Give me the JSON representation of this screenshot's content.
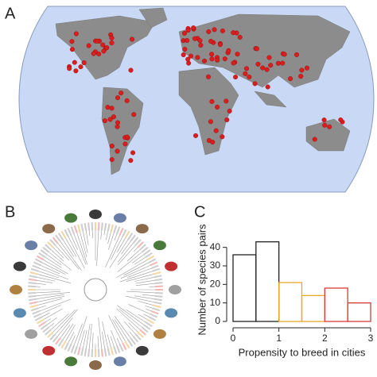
{
  "panels": {
    "a": "A",
    "b": "B",
    "c": "C"
  },
  "chart_data": {
    "type": "histogram",
    "bins": [
      0,
      0.5,
      1,
      1.5,
      2,
      2.5,
      3
    ],
    "values": [
      36,
      43,
      21,
      14,
      18,
      10
    ],
    "colors": [
      "#222222",
      "#222222",
      "#e8a92a",
      "#e8a92a",
      "#d93a3a",
      "#d93a3a"
    ],
    "xlabel": "Propensity to breed in cities",
    "ylabel": "Number of species pairs",
    "xlim": [
      0,
      3
    ],
    "xticks": [
      0,
      1,
      2,
      3
    ],
    "ylim": [
      0,
      45
    ],
    "yticks": [
      0,
      10,
      20,
      30,
      40
    ]
  }
}
